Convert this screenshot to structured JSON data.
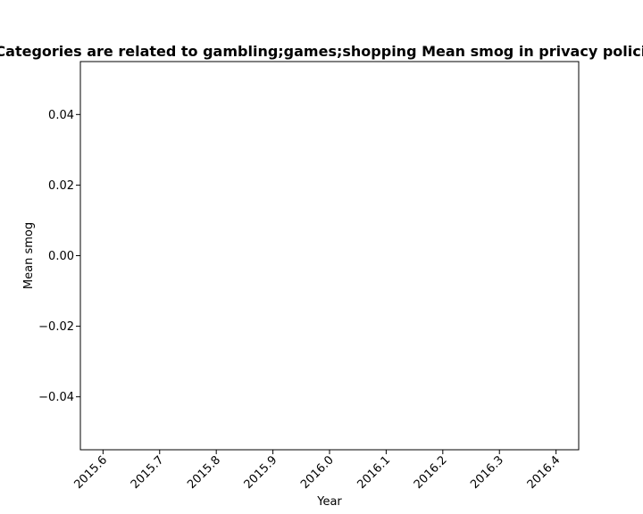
{
  "chart_data": {
    "type": "line",
    "title": "Categories are related to gambling;games;shopping Mean smog in privacy policies",
    "xlabel": "Year",
    "ylabel": "Mean smog",
    "xlim": [
      2015.56,
      2016.44
    ],
    "ylim": [
      -0.055,
      0.055
    ],
    "x_ticks": [
      2015.6,
      2015.7,
      2015.8,
      2015.9,
      2016.0,
      2016.1,
      2016.2,
      2016.3,
      2016.4
    ],
    "x_tick_labels": [
      "2015.6",
      "2015.7",
      "2015.8",
      "2015.9",
      "2016.0",
      "2016.1",
      "2016.2",
      "2016.3",
      "2016.4"
    ],
    "y_ticks": [
      0.04,
      0.02,
      0.0,
      -0.02,
      -0.04
    ],
    "y_tick_labels": [
      "0.04",
      "0.02",
      "0.00",
      "−0.02",
      "−0.04"
    ],
    "x_tick_rotation": 45,
    "grid": false,
    "series": [
      {
        "x": [],
        "y": []
      }
    ]
  }
}
